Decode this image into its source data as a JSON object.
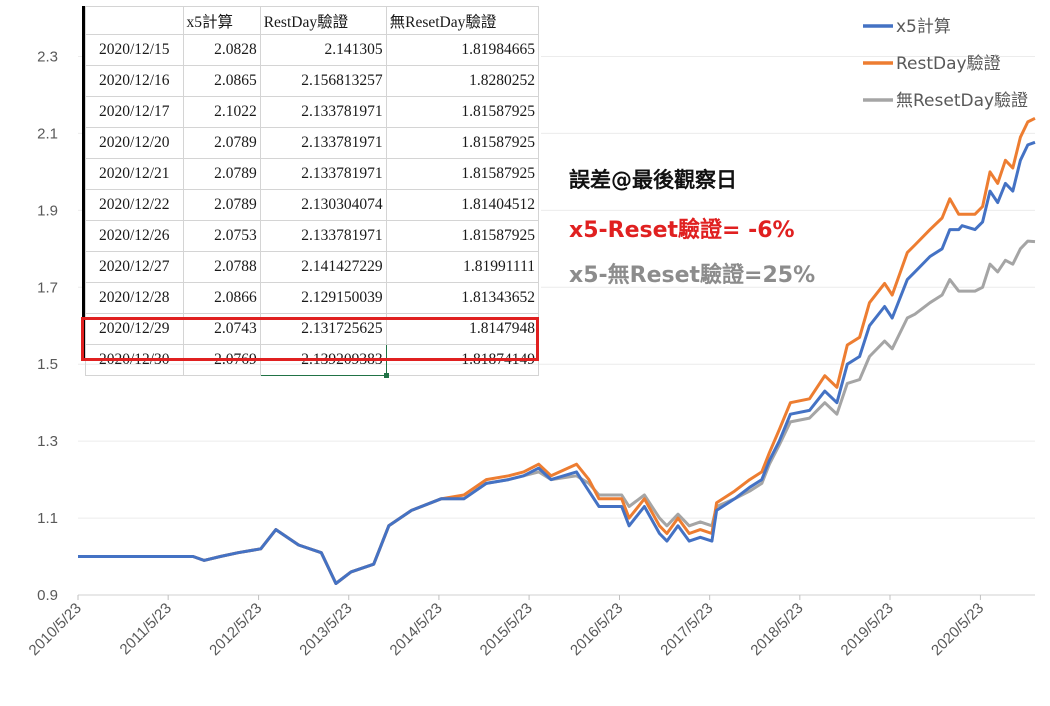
{
  "chart_data": {
    "type": "line",
    "title": "",
    "xlabel": "",
    "ylabel": "",
    "ylim": [
      0.9,
      2.4
    ],
    "yticks": [
      "0.9",
      "1.1",
      "1.3",
      "1.5",
      "1.7",
      "1.9",
      "2.1",
      "2.3"
    ],
    "x_tick_labels": [
      "2010/5/23",
      "2011/5/23",
      "2012/5/23",
      "2013/5/23",
      "2014/5/23",
      "2015/5/23",
      "2016/5/23",
      "2017/5/23",
      "2018/5/23",
      "2019/5/23",
      "2020/5/23"
    ],
    "x_range": [
      "2010/5/23",
      "2020/12/30"
    ],
    "legend_position": "top-right",
    "series": [
      {
        "name": "x5計算",
        "color": "#4472C4",
        "points": [
          [
            "2010/5/23",
            1.0
          ],
          [
            "2011/9/1",
            1.0
          ],
          [
            "2011/10/15",
            0.99
          ],
          [
            "2011/12/20",
            1.0
          ],
          [
            "2012/3/1",
            1.01
          ],
          [
            "2012/6/1",
            1.02
          ],
          [
            "2012/8/1",
            1.07
          ],
          [
            "2012/11/1",
            1.03
          ],
          [
            "2013/2/1",
            1.01
          ],
          [
            "2013/4/1",
            0.93
          ],
          [
            "2013/6/1",
            0.96
          ],
          [
            "2013/9/1",
            0.98
          ],
          [
            "2013/11/1",
            1.08
          ],
          [
            "2014/2/1",
            1.12
          ],
          [
            "2014/6/1",
            1.15
          ],
          [
            "2014/9/1",
            1.15
          ],
          [
            "2014/12/1",
            1.19
          ],
          [
            "2015/3/1",
            1.2
          ],
          [
            "2015/5/1",
            1.21
          ],
          [
            "2015/7/1",
            1.23
          ],
          [
            "2015/8/20",
            1.2
          ],
          [
            "2015/12/1",
            1.22
          ],
          [
            "2016/1/20",
            1.17
          ],
          [
            "2016/3/1",
            1.13
          ],
          [
            "2016/6/1",
            1.13
          ],
          [
            "2016/7/1",
            1.08
          ],
          [
            "2016/9/1",
            1.13
          ],
          [
            "2016/11/1",
            1.06
          ],
          [
            "2016/12/1",
            1.04
          ],
          [
            "2017/1/15",
            1.08
          ],
          [
            "2017/3/1",
            1.04
          ],
          [
            "2017/4/15",
            1.05
          ],
          [
            "2017/6/1",
            1.04
          ],
          [
            "2017/6/20",
            1.12
          ],
          [
            "2017/9/1",
            1.15
          ],
          [
            "2017/11/1",
            1.18
          ],
          [
            "2017/12/20",
            1.2
          ],
          [
            "2018/1/20",
            1.25
          ],
          [
            "2018/3/1",
            1.3
          ],
          [
            "2018/4/15",
            1.37
          ],
          [
            "2018/7/1",
            1.38
          ],
          [
            "2018/9/1",
            1.43
          ],
          [
            "2018/10/20",
            1.4
          ],
          [
            "2018/12/1",
            1.5
          ],
          [
            "2019/1/20",
            1.52
          ],
          [
            "2019/3/1",
            1.6
          ],
          [
            "2019/5/1",
            1.65
          ],
          [
            "2019/6/1",
            1.62
          ],
          [
            "2019/8/1",
            1.72
          ],
          [
            "2019/9/1",
            1.74
          ],
          [
            "2019/11/1",
            1.78
          ],
          [
            "2019/12/20",
            1.8
          ],
          [
            "2020/1/20",
            1.85
          ],
          [
            "2020/2/25",
            1.85
          ],
          [
            "2020/3/10",
            1.86
          ],
          [
            "2020/5/1",
            1.85
          ],
          [
            "2020/6/1",
            1.87
          ],
          [
            "2020/7/1",
            1.95
          ],
          [
            "2020/8/1",
            1.92
          ],
          [
            "2020/9/1",
            1.97
          ],
          [
            "2020/10/1",
            1.95
          ],
          [
            "2020/11/1",
            2.03
          ],
          [
            "2020/12/1",
            2.07
          ],
          [
            "2020/12/30",
            2.0769
          ]
        ]
      },
      {
        "name": "RestDay驗證",
        "color": "#ED7D31",
        "points": [
          [
            "2010/5/23",
            1.0
          ],
          [
            "2011/9/1",
            1.0
          ],
          [
            "2011/10/15",
            0.99
          ],
          [
            "2011/12/20",
            1.0
          ],
          [
            "2012/3/1",
            1.01
          ],
          [
            "2012/6/1",
            1.02
          ],
          [
            "2012/8/1",
            1.07
          ],
          [
            "2012/11/1",
            1.03
          ],
          [
            "2013/2/1",
            1.01
          ],
          [
            "2013/4/1",
            0.93
          ],
          [
            "2013/6/1",
            0.96
          ],
          [
            "2013/9/1",
            0.98
          ],
          [
            "2013/11/1",
            1.08
          ],
          [
            "2014/2/1",
            1.12
          ],
          [
            "2014/6/1",
            1.15
          ],
          [
            "2014/9/1",
            1.16
          ],
          [
            "2014/12/1",
            1.2
          ],
          [
            "2015/3/1",
            1.21
          ],
          [
            "2015/5/1",
            1.22
          ],
          [
            "2015/7/1",
            1.24
          ],
          [
            "2015/8/20",
            1.21
          ],
          [
            "2015/12/1",
            1.24
          ],
          [
            "2016/1/20",
            1.2
          ],
          [
            "2016/3/1",
            1.15
          ],
          [
            "2016/6/1",
            1.15
          ],
          [
            "2016/7/1",
            1.1
          ],
          [
            "2016/9/1",
            1.15
          ],
          [
            "2016/11/1",
            1.08
          ],
          [
            "2016/12/1",
            1.06
          ],
          [
            "2017/1/15",
            1.1
          ],
          [
            "2017/3/1",
            1.06
          ],
          [
            "2017/4/15",
            1.07
          ],
          [
            "2017/6/1",
            1.06
          ],
          [
            "2017/6/20",
            1.14
          ],
          [
            "2017/9/1",
            1.17
          ],
          [
            "2017/11/1",
            1.2
          ],
          [
            "2017/12/20",
            1.22
          ],
          [
            "2018/1/20",
            1.27
          ],
          [
            "2018/3/1",
            1.33
          ],
          [
            "2018/4/15",
            1.4
          ],
          [
            "2018/7/1",
            1.41
          ],
          [
            "2018/9/1",
            1.47
          ],
          [
            "2018/10/20",
            1.44
          ],
          [
            "2018/12/1",
            1.55
          ],
          [
            "2019/1/20",
            1.57
          ],
          [
            "2019/3/1",
            1.66
          ],
          [
            "2019/5/1",
            1.71
          ],
          [
            "2019/6/1",
            1.68
          ],
          [
            "2019/8/1",
            1.79
          ],
          [
            "2019/9/1",
            1.81
          ],
          [
            "2019/11/1",
            1.85
          ],
          [
            "2019/12/20",
            1.88
          ],
          [
            "2020/1/20",
            1.93
          ],
          [
            "2020/2/25",
            1.89
          ],
          [
            "2020/3/10",
            1.89
          ],
          [
            "2020/5/1",
            1.89
          ],
          [
            "2020/6/1",
            1.91
          ],
          [
            "2020/7/1",
            2.0
          ],
          [
            "2020/8/1",
            1.97
          ],
          [
            "2020/9/1",
            2.03
          ],
          [
            "2020/10/1",
            2.01
          ],
          [
            "2020/11/1",
            2.09
          ],
          [
            "2020/12/1",
            2.13
          ],
          [
            "2020/12/30",
            2.139209383
          ]
        ]
      },
      {
        "name": "無ResetDay驗證",
        "color": "#A5A5A5",
        "points": [
          [
            "2010/5/23",
            1.0
          ],
          [
            "2011/9/1",
            1.0
          ],
          [
            "2011/10/15",
            0.99
          ],
          [
            "2011/12/20",
            1.0
          ],
          [
            "2012/3/1",
            1.01
          ],
          [
            "2012/6/1",
            1.02
          ],
          [
            "2012/8/1",
            1.07
          ],
          [
            "2012/11/1",
            1.03
          ],
          [
            "2013/2/1",
            1.01
          ],
          [
            "2013/4/1",
            0.93
          ],
          [
            "2013/6/1",
            0.96
          ],
          [
            "2013/9/1",
            0.98
          ],
          [
            "2013/11/1",
            1.08
          ],
          [
            "2014/2/1",
            1.12
          ],
          [
            "2014/6/1",
            1.15
          ],
          [
            "2014/9/1",
            1.15
          ],
          [
            "2014/12/1",
            1.19
          ],
          [
            "2015/3/1",
            1.2
          ],
          [
            "2015/5/1",
            1.21
          ],
          [
            "2015/7/1",
            1.22
          ],
          [
            "2015/8/20",
            1.2
          ],
          [
            "2015/12/1",
            1.21
          ],
          [
            "2016/1/20",
            1.19
          ],
          [
            "2016/3/1",
            1.16
          ],
          [
            "2016/6/1",
            1.16
          ],
          [
            "2016/7/1",
            1.13
          ],
          [
            "2016/9/1",
            1.16
          ],
          [
            "2016/11/1",
            1.1
          ],
          [
            "2016/12/1",
            1.08
          ],
          [
            "2017/1/15",
            1.11
          ],
          [
            "2017/3/1",
            1.08
          ],
          [
            "2017/4/15",
            1.09
          ],
          [
            "2017/6/1",
            1.08
          ],
          [
            "2017/6/20",
            1.13
          ],
          [
            "2017/9/1",
            1.15
          ],
          [
            "2017/11/1",
            1.17
          ],
          [
            "2017/12/20",
            1.19
          ],
          [
            "2018/1/20",
            1.24
          ],
          [
            "2018/3/1",
            1.29
          ],
          [
            "2018/4/15",
            1.35
          ],
          [
            "2018/7/1",
            1.36
          ],
          [
            "2018/9/1",
            1.4
          ],
          [
            "2018/10/20",
            1.37
          ],
          [
            "2018/12/1",
            1.45
          ],
          [
            "2019/1/20",
            1.46
          ],
          [
            "2019/3/1",
            1.52
          ],
          [
            "2019/5/1",
            1.56
          ],
          [
            "2019/6/1",
            1.54
          ],
          [
            "2019/8/1",
            1.62
          ],
          [
            "2019/9/1",
            1.63
          ],
          [
            "2019/11/1",
            1.66
          ],
          [
            "2019/12/20",
            1.68
          ],
          [
            "2020/1/20",
            1.72
          ],
          [
            "2020/2/25",
            1.69
          ],
          [
            "2020/3/10",
            1.69
          ],
          [
            "2020/5/1",
            1.69
          ],
          [
            "2020/6/1",
            1.7
          ],
          [
            "2020/7/1",
            1.76
          ],
          [
            "2020/8/1",
            1.74
          ],
          [
            "2020/9/1",
            1.77
          ],
          [
            "2020/10/1",
            1.76
          ],
          [
            "2020/11/1",
            1.8
          ],
          [
            "2020/12/1",
            1.82
          ],
          [
            "2020/12/30",
            1.81874149
          ]
        ]
      }
    ]
  },
  "sheet": {
    "header": [
      "",
      "x5計算",
      "RestDay驗證",
      "無ResetDay驗證"
    ],
    "rows": [
      [
        "2020/12/15",
        "2.0828",
        "2.141305",
        "1.81984665"
      ],
      [
        "2020/12/16",
        "2.0865",
        "2.156813257",
        "1.8280252"
      ],
      [
        "2020/12/17",
        "2.1022",
        "2.133781971",
        "1.81587925"
      ],
      [
        "2020/12/20",
        "2.0789",
        "2.133781971",
        "1.81587925"
      ],
      [
        "2020/12/21",
        "2.0789",
        "2.133781971",
        "1.81587925"
      ],
      [
        "2020/12/22",
        "2.0789",
        "2.130304074",
        "1.81404512"
      ],
      [
        "2020/12/26",
        "2.0753",
        "2.133781971",
        "1.81587925"
      ],
      [
        "2020/12/27",
        "2.0788",
        "2.141427229",
        "1.81991111"
      ],
      [
        "2020/12/28",
        "2.0866",
        "2.129150039",
        "1.81343652"
      ],
      [
        "2020/12/29",
        "2.0743",
        "2.131725625",
        "1.8147948"
      ],
      [
        "2020/12/30",
        "2.0769",
        "2.139209383",
        "1.81874149"
      ]
    ]
  },
  "annotations": {
    "title": "誤差@最後觀察日",
    "reset_line": "x5-Reset驗證= -6%",
    "noreset_line": "x5-無Reset驗證=25%",
    "reset_color": "#E02020",
    "noreset_color": "#8C8C8C"
  }
}
